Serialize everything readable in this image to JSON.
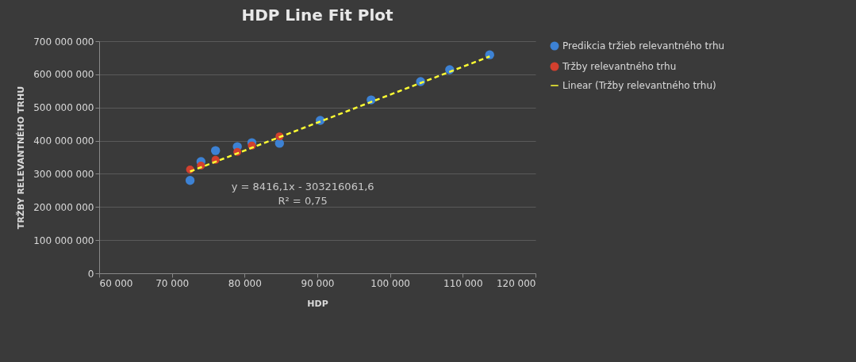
{
  "chart_data": {
    "type": "scatter",
    "title": "HDP Line Fit  Plot",
    "xlabel": "HDP",
    "ylabel": "TRŽBY RELEVANTNÉHO TRHU",
    "x": [
      72500,
      74000,
      76000,
      79000,
      81000,
      84800,
      90400,
      97400,
      104200,
      108200,
      113700
    ],
    "series": [
      {
        "name": "Predikcia tržieb relevantného trhu",
        "color": "#3d82d4",
        "values": [
          280000000,
          337000000,
          370000000,
          382000000,
          394000000,
          392000000,
          461000000,
          523000000,
          578000000,
          614000000,
          659000000
        ]
      },
      {
        "name": "Tržby relevantného trhu",
        "color": "#d2402e",
        "x": [
          72500,
          74000,
          76000,
          79000,
          81000,
          84800
        ],
        "values": [
          313000000,
          325000000,
          342000000,
          366000000,
          385000000,
          413000000
        ]
      },
      {
        "name": "Linear (Tržby relevantného trhu)",
        "type": "line",
        "line_style": "dashed",
        "marker": "none",
        "color": "#ffff33",
        "x": [
          72500,
          113700
        ],
        "values": [
          307000000,
          654000000
        ]
      }
    ],
    "annotations": [
      "y = 8416,1x - 303216061,6",
      "R² = 0,75"
    ],
    "xlim": [
      60000,
      120000
    ],
    "xticks": [
      {
        "value": 60000,
        "label": "60 000"
      },
      {
        "value": 70000,
        "label": "70 000"
      },
      {
        "value": 80000,
        "label": "80 000"
      },
      {
        "value": 90000,
        "label": "90 000"
      },
      {
        "value": 100000,
        "label": "100 000"
      },
      {
        "value": 110000,
        "label": "110 000"
      },
      {
        "value": 120000,
        "label": "120 000"
      }
    ],
    "ylim": [
      0,
      700000000
    ],
    "yticks": [
      0,
      {
        "value": 100000000,
        "label": "100 000 000"
      },
      {
        "value": 200000000,
        "label": "200 000 000"
      },
      {
        "value": 300000000,
        "label": "300 000 000"
      },
      {
        "value": 400000000,
        "label": "400 000 000"
      },
      {
        "value": 500000000,
        "label": "500 000 000"
      },
      {
        "value": 600000000,
        "label": "600 000 000"
      },
      {
        "value": 700000000,
        "label": "700 000 000"
      }
    ],
    "grid": "y",
    "legend": "right",
    "marker": "circle"
  }
}
